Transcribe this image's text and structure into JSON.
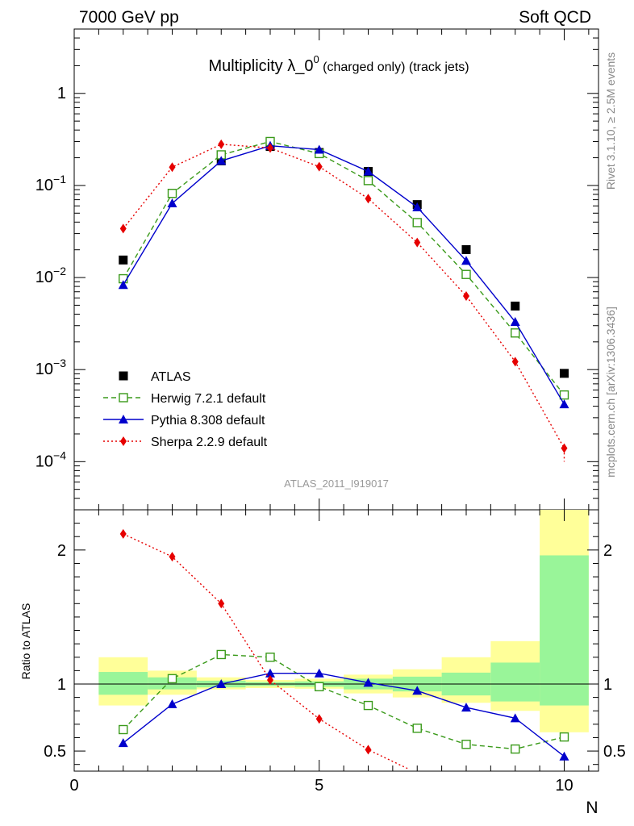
{
  "header": {
    "left": "7000 GeV pp",
    "right": "Soft QCD"
  },
  "title": {
    "main": "Multiplicity λ_0",
    "superscript": "0",
    "suffix": " (charged only) (track jets)"
  },
  "side_labels": {
    "rivet": "Rivet 3.1.10, ≥ 2.5M events",
    "mcplots": "mcplots.cern.ch [arXiv:1306.3436]"
  },
  "watermark": "ATLAS_2011_I919017",
  "chart_data": [
    {
      "type": "scatter",
      "panel": "main",
      "x": [
        1,
        2,
        3,
        4,
        5,
        6,
        7,
        8,
        9,
        10
      ],
      "yscale": "log",
      "ylim": [
        3e-05,
        5
      ],
      "xlim": [
        0,
        10.7
      ],
      "y_ticks": [
        {
          "value": 0.0001,
          "base": "10",
          "exp": "−4"
        },
        {
          "value": 0.001,
          "base": "10",
          "exp": "−3"
        },
        {
          "value": 0.01,
          "base": "10",
          "exp": "−2"
        },
        {
          "value": 0.1,
          "base": "10",
          "exp": "−1"
        },
        {
          "value": 1,
          "base": "1",
          "exp": ""
        }
      ],
      "series": [
        {
          "name": "ATLAS",
          "color": "#000000",
          "marker": "square-filled",
          "style": "none",
          "values": [
            0.0155,
            0.082,
            0.185,
            0.265,
            0.228,
            0.142,
            0.062,
            0.0201,
            0.0049,
            0.00091
          ]
        },
        {
          "name": "Herwig 7.2.1 default",
          "color": "#3a9a1a",
          "marker": "square-open",
          "style": "dashed",
          "values": [
            0.0097,
            0.082,
            0.215,
            0.3,
            0.222,
            0.113,
            0.0395,
            0.0108,
            0.0025,
            0.00053
          ]
        },
        {
          "name": "Pythia 8.308 default",
          "color": "#0000cc",
          "marker": "triangle",
          "style": "solid",
          "values": [
            0.0083,
            0.064,
            0.185,
            0.27,
            0.245,
            0.142,
            0.058,
            0.0152,
            0.0033,
            0.00042
          ]
        },
        {
          "name": "Sherpa 2.2.9 default",
          "color": "#e60000",
          "marker": "diamond",
          "style": "dotted",
          "values": [
            0.034,
            0.158,
            0.28,
            0.255,
            0.16,
            0.072,
            0.024,
            0.0063,
            0.00122,
            0.00014
          ]
        }
      ],
      "sherpa_tail": {
        "x": 10,
        "value": 0.0001
      }
    },
    {
      "type": "scatter",
      "panel": "ratio",
      "ylabel": "Ratio to ATLAS",
      "xlabel": "N",
      "xlim": [
        0,
        10.7
      ],
      "ylim": [
        0.35,
        2.3
      ],
      "x_ticks": [
        0,
        5,
        10
      ],
      "y_ticks": [
        "0.5",
        "1",
        "2"
      ],
      "y_tick_values": [
        0.5,
        1,
        2
      ],
      "bands": {
        "x_edges": [
          0.5,
          1.5,
          2.5,
          3.5,
          4.5,
          5.5,
          6.5,
          7.5,
          8.5,
          9.5,
          10.5
        ],
        "inner_low": [
          0.92,
          0.96,
          0.975,
          0.985,
          0.98,
          0.96,
          0.945,
          0.915,
          0.87,
          0.84
        ],
        "inner_high": [
          1.09,
          1.05,
          1.025,
          1.015,
          1.02,
          1.04,
          1.055,
          1.085,
          1.16,
          1.96
        ],
        "outer_low": [
          0.84,
          0.92,
          0.96,
          0.97,
          0.965,
          0.93,
          0.9,
          0.86,
          0.8,
          0.64
        ],
        "outer_high": [
          1.2,
          1.1,
          1.05,
          1.03,
          1.04,
          1.07,
          1.11,
          1.2,
          1.32,
          2.3
        ],
        "inner_color": "#99f599",
        "outer_color": "#ffff99"
      },
      "series": [
        {
          "name": "Herwig 7.2.1 default",
          "color": "#3a9a1a",
          "marker": "square-open",
          "style": "dashed",
          "values": [
            0.66,
            1.04,
            1.22,
            1.2,
            0.98,
            0.84,
            0.67,
            0.55,
            0.515,
            0.605
          ]
        },
        {
          "name": "Pythia 8.308 default",
          "color": "#0000cc",
          "marker": "triangle",
          "style": "solid",
          "values": [
            0.56,
            0.85,
            1.0,
            1.08,
            1.08,
            1.01,
            0.95,
            0.825,
            0.745,
            0.46
          ]
        },
        {
          "name": "Sherpa 2.2.9 default",
          "color": "#e60000",
          "marker": "diamond",
          "style": "dotted",
          "values": [
            2.12,
            1.95,
            1.6,
            1.03,
            0.74,
            0.51
          ]
        }
      ],
      "sherpa_tail": {
        "x": 6.8,
        "value": 0.37
      }
    }
  ]
}
